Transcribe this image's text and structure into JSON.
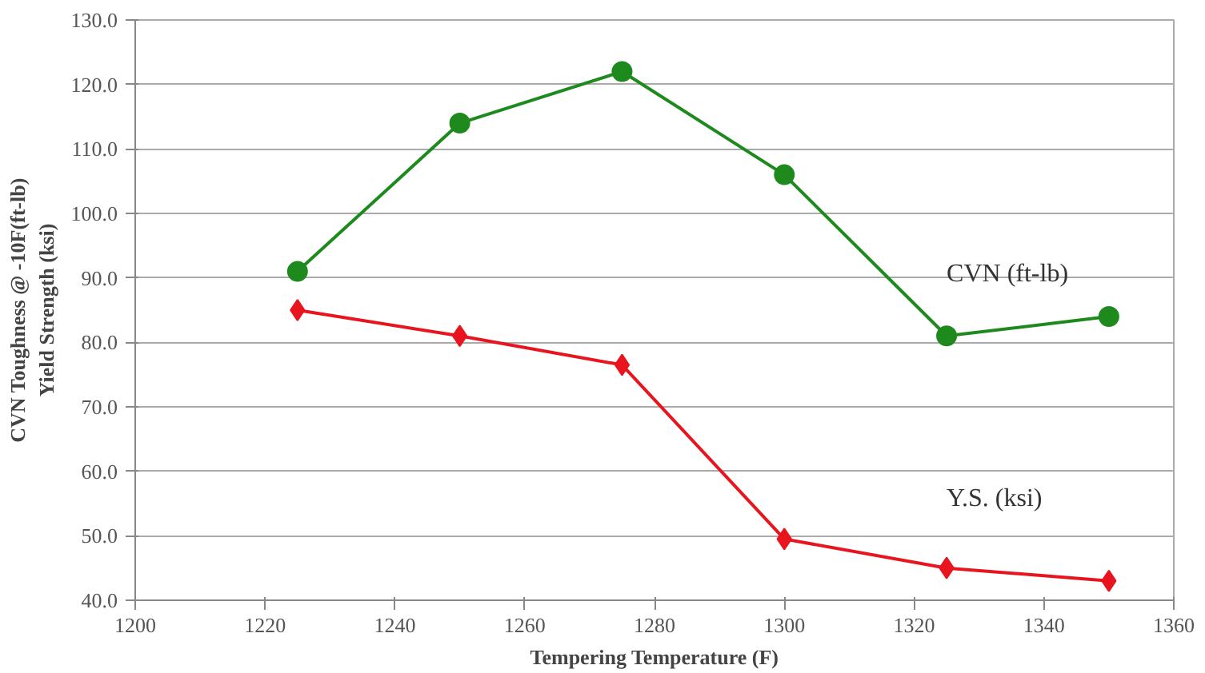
{
  "chart_data": {
    "type": "line",
    "xlabel": "Tempering Temperature (F)",
    "ylabel": "CVN Toughness @ -10F(ft-lb)\nYield Strength (ksi)",
    "x": [
      1225,
      1250,
      1275,
      1300,
      1325,
      1350
    ],
    "series": [
      {
        "name": "CVN (ft-lb)",
        "color": "#1e8a1e",
        "marker": "circle",
        "values": [
          91,
          114,
          122,
          106,
          81,
          84
        ]
      },
      {
        "name": "Y.S. (ksi)",
        "color": "#e8141e",
        "marker": "diamond",
        "values": [
          85,
          81,
          76.5,
          49.5,
          45,
          43
        ]
      }
    ],
    "xlim": [
      1200,
      1360
    ],
    "xticks": [
      1200,
      1220,
      1240,
      1260,
      1280,
      1300,
      1320,
      1340,
      1360
    ],
    "ylim": [
      40,
      130
    ],
    "yticks": [
      {
        "value": 40,
        "label": "40.0"
      },
      {
        "value": 50,
        "label": "50.0"
      },
      {
        "value": 60,
        "label": "60.0"
      },
      {
        "value": 70,
        "label": "70.0"
      },
      {
        "value": 80,
        "label": "80.0"
      },
      {
        "value": 90,
        "label": "90.0"
      },
      {
        "value": 100,
        "label": "100.0"
      },
      {
        "value": 110,
        "label": "110.0"
      },
      {
        "value": 120,
        "label": "120.0"
      },
      {
        "value": 130,
        "label": "130.0"
      }
    ],
    "grid": "y"
  }
}
